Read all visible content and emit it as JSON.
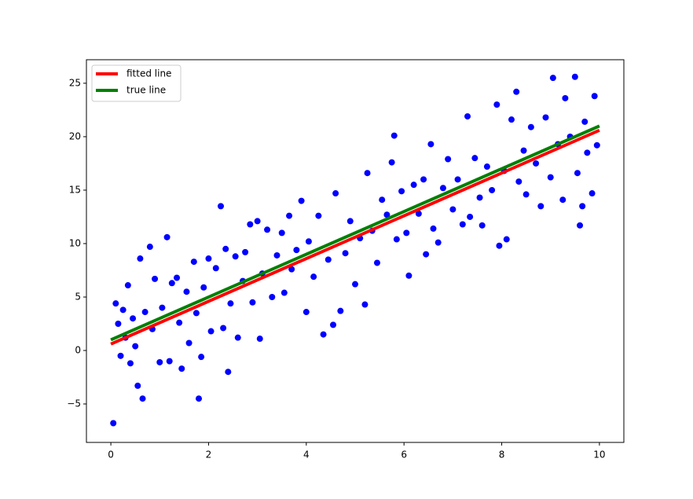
{
  "chart_data": {
    "type": "scatter",
    "xlim": [
      -0.5,
      10.5
    ],
    "ylim": [
      -8.6,
      27.2
    ],
    "xticks": [
      0,
      2,
      4,
      6,
      8,
      10
    ],
    "yticks": [
      {
        "value": -5,
        "label": "−5"
      },
      0,
      5,
      10,
      15,
      20,
      25
    ],
    "legend": "upper left",
    "series": [
      {
        "type": "scatter",
        "color": "#0000ff",
        "x": [
          0.05,
          0.1,
          0.15,
          0.2,
          0.25,
          0.3,
          0.35,
          0.4,
          0.45,
          0.5,
          0.55,
          0.6,
          0.65,
          0.7,
          0.8,
          0.85,
          0.9,
          1.0,
          1.05,
          1.15,
          1.2,
          1.25,
          1.35,
          1.4,
          1.45,
          1.55,
          1.6,
          1.7,
          1.75,
          1.8,
          1.85,
          1.9,
          2.0,
          2.05,
          2.15,
          2.25,
          2.3,
          2.35,
          2.4,
          2.45,
          2.55,
          2.6,
          2.7,
          2.75,
          2.85,
          2.9,
          3.0,
          3.05,
          3.1,
          3.2,
          3.3,
          3.4,
          3.5,
          3.55,
          3.65,
          3.7,
          3.8,
          3.9,
          4.0,
          4.05,
          4.15,
          4.25,
          4.35,
          4.45,
          4.55,
          4.6,
          4.7,
          4.8,
          4.9,
          5.0,
          5.1,
          5.2,
          5.25,
          5.35,
          5.45,
          5.55,
          5.65,
          5.75,
          5.8,
          5.85,
          5.95,
          6.05,
          6.1,
          6.2,
          6.3,
          6.4,
          6.45,
          6.55,
          6.6,
          6.7,
          6.8,
          6.9,
          7.0,
          7.1,
          7.2,
          7.3,
          7.35,
          7.45,
          7.55,
          7.6,
          7.7,
          7.8,
          7.9,
          7.95,
          8.05,
          8.1,
          8.2,
          8.3,
          8.35,
          8.45,
          8.5,
          8.6,
          8.7,
          8.8,
          8.9,
          9.0,
          9.05,
          9.15,
          9.25,
          9.3,
          9.4,
          9.5,
          9.55,
          9.6,
          9.65,
          9.7,
          9.75,
          9.85,
          9.9,
          9.95
        ],
        "values": [
          -6.8,
          4.4,
          2.5,
          -0.5,
          3.8,
          1.2,
          6.1,
          -1.2,
          3.0,
          0.4,
          -3.3,
          8.6,
          -4.5,
          3.6,
          9.7,
          2.0,
          6.7,
          -1.1,
          4.0,
          10.6,
          -1.0,
          6.3,
          6.8,
          2.6,
          -1.7,
          5.5,
          0.7,
          8.3,
          3.5,
          -4.5,
          -0.6,
          5.9,
          8.6,
          1.8,
          7.7,
          13.5,
          2.1,
          9.5,
          -2.0,
          4.4,
          8.8,
          1.2,
          6.5,
          9.2,
          11.8,
          4.5,
          12.1,
          1.1,
          7.2,
          11.3,
          5.0,
          8.9,
          11.0,
          5.4,
          12.6,
          7.6,
          9.4,
          14.0,
          3.6,
          10.2,
          6.9,
          12.6,
          1.5,
          8.5,
          2.4,
          14.7,
          3.7,
          9.1,
          12.1,
          6.2,
          10.5,
          4.3,
          16.6,
          11.2,
          8.2,
          14.1,
          12.7,
          17.6,
          20.1,
          10.4,
          14.9,
          11.0,
          7.0,
          15.5,
          12.8,
          16.0,
          9.0,
          19.3,
          11.4,
          10.1,
          15.2,
          17.9,
          13.2,
          16.0,
          11.8,
          21.9,
          12.5,
          18.0,
          14.3,
          11.7,
          17.2,
          15.0,
          23.0,
          9.8,
          16.8,
          10.4,
          21.6,
          24.2,
          15.8,
          18.7,
          14.6,
          20.9,
          17.5,
          13.5,
          21.8,
          16.2,
          25.5,
          19.3,
          14.1,
          23.6,
          20.0,
          25.6,
          16.6,
          11.7,
          13.5,
          21.4,
          18.5,
          14.7,
          23.8,
          19.2
        ]
      },
      {
        "type": "line",
        "name": "fitted line",
        "color": "#ff0000",
        "x": [
          0,
          10
        ],
        "values": [
          0.6,
          20.6
        ]
      },
      {
        "type": "line",
        "name": "true line",
        "color": "#008000",
        "x": [
          0,
          10
        ],
        "values": [
          1.0,
          21.0
        ]
      }
    ]
  }
}
